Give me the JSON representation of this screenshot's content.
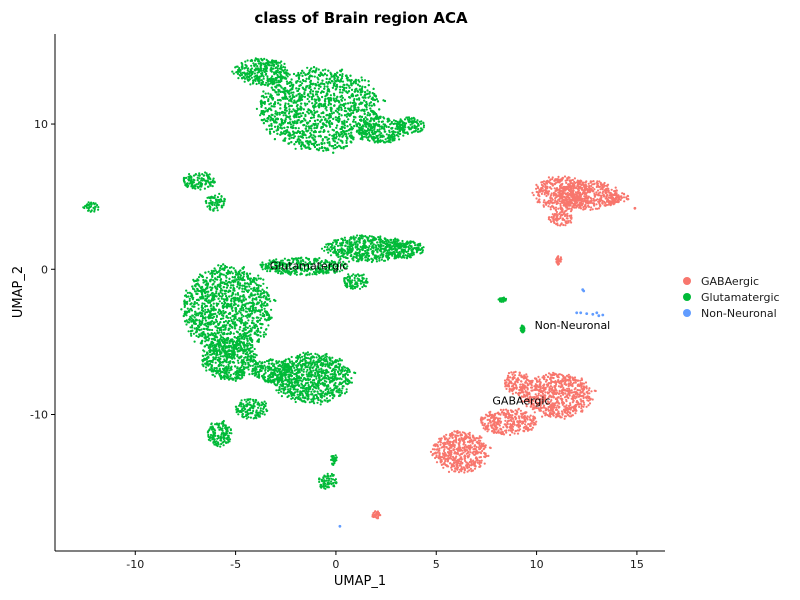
{
  "chart_data": {
    "type": "scatter",
    "title": "class of Brain region ACA",
    "xlabel": "UMAP_1",
    "ylabel": "UMAP_2",
    "xlim": [
      -14,
      16.4
    ],
    "ylim": [
      -19.4,
      16.2
    ],
    "xticks": [
      -10,
      -5,
      0,
      5,
      10,
      15
    ],
    "yticks": [
      10,
      0,
      -10
    ],
    "xtick_labels": [
      "-10",
      "-5",
      "0",
      "5",
      "10",
      "15"
    ],
    "ytick_labels": [
      "10",
      "0",
      "-10"
    ],
    "grid": false,
    "legend_position": "right",
    "series": [
      {
        "name": "GABAergic",
        "color": "#F8766D",
        "clusters": [
          {
            "cx": 11.3,
            "cy": 5.2,
            "rx": 1.4,
            "ry": 1.2
          },
          {
            "cx": 12.6,
            "cy": 5.1,
            "rx": 1.5,
            "ry": 1.0
          },
          {
            "cx": 14.0,
            "cy": 4.9,
            "rx": 0.6,
            "ry": 0.4
          },
          {
            "cx": 11.2,
            "cy": 3.5,
            "rx": 0.6,
            "ry": 0.5
          },
          {
            "cx": 11.1,
            "cy": 0.6,
            "rx": 0.15,
            "ry": 0.3
          },
          {
            "cx": 11.0,
            "cy": -8.7,
            "rx": 1.8,
            "ry": 1.5
          },
          {
            "cx": 9.0,
            "cy": -7.8,
            "rx": 0.6,
            "ry": 0.8
          },
          {
            "cx": 8.6,
            "cy": -10.5,
            "rx": 1.4,
            "ry": 0.9
          },
          {
            "cx": 6.2,
            "cy": -12.6,
            "rx": 1.4,
            "ry": 1.4
          },
          {
            "cx": 2.0,
            "cy": -16.9,
            "rx": 0.25,
            "ry": 0.25
          }
        ],
        "points": [
          [
            14.9,
            4.2
          ]
        ]
      },
      {
        "name": "Glutamatergic",
        "color": "#00BA38",
        "clusters": [
          {
            "cx": -0.8,
            "cy": 11.0,
            "rx": 3.0,
            "ry": 2.8
          },
          {
            "cx": -3.7,
            "cy": 13.6,
            "rx": 1.4,
            "ry": 0.9
          },
          {
            "cx": 2.3,
            "cy": 9.6,
            "rx": 1.2,
            "ry": 0.9
          },
          {
            "cx": 3.7,
            "cy": 9.9,
            "rx": 0.7,
            "ry": 0.6
          },
          {
            "cx": -6.8,
            "cy": 6.1,
            "rx": 0.8,
            "ry": 0.6
          },
          {
            "cx": -6.0,
            "cy": 4.6,
            "rx": 0.5,
            "ry": 0.6
          },
          {
            "cx": -12.2,
            "cy": 4.3,
            "rx": 0.4,
            "ry": 0.35
          },
          {
            "cx": 1.5,
            "cy": 1.4,
            "rx": 2.1,
            "ry": 0.9
          },
          {
            "cx": 3.3,
            "cy": 1.4,
            "rx": 1.1,
            "ry": 0.6
          },
          {
            "cx": -1.6,
            "cy": 0.2,
            "rx": 2.2,
            "ry": 0.6
          },
          {
            "cx": 1.0,
            "cy": -0.8,
            "rx": 0.6,
            "ry": 0.6
          },
          {
            "cx": -5.4,
            "cy": -2.8,
            "rx": 2.2,
            "ry": 3.0
          },
          {
            "cx": -5.3,
            "cy": -6.2,
            "rx": 1.4,
            "ry": 1.4
          },
          {
            "cx": -1.2,
            "cy": -7.5,
            "rx": 2.0,
            "ry": 1.7
          },
          {
            "cx": -3.2,
            "cy": -7.0,
            "rx": 1.0,
            "ry": 0.8
          },
          {
            "cx": -4.2,
            "cy": -9.6,
            "rx": 0.8,
            "ry": 0.7
          },
          {
            "cx": -5.8,
            "cy": -11.3,
            "rx": 0.6,
            "ry": 0.9
          },
          {
            "cx": -0.4,
            "cy": -14.6,
            "rx": 0.45,
            "ry": 0.6
          },
          {
            "cx": -0.1,
            "cy": -13.1,
            "rx": 0.15,
            "ry": 0.4
          },
          {
            "cx": 8.3,
            "cy": -2.1,
            "rx": 0.2,
            "ry": 0.15
          },
          {
            "cx": 9.3,
            "cy": -4.1,
            "rx": 0.1,
            "ry": 0.25
          }
        ],
        "points": []
      },
      {
        "name": "Non-Neuronal",
        "color": "#619CFF",
        "clusters": [],
        "points": [
          [
            12.0,
            -3.0
          ],
          [
            12.2,
            -3.0
          ],
          [
            12.5,
            -3.05
          ],
          [
            12.8,
            -3.1
          ],
          [
            13.1,
            -3.2
          ],
          [
            13.3,
            -3.15
          ],
          [
            13.0,
            -3.0
          ],
          [
            12.3,
            -1.4
          ],
          [
            12.35,
            -1.5
          ],
          [
            0.2,
            -17.7
          ]
        ]
      }
    ],
    "annotations": [
      {
        "text": "Glutamatergic",
        "x": -3.3,
        "y": 0.0
      },
      {
        "text": "GABAergic",
        "x": 7.8,
        "y": -9.3
      },
      {
        "text": "Non-Neuronal",
        "x": 9.9,
        "y": -4.1
      }
    ]
  }
}
